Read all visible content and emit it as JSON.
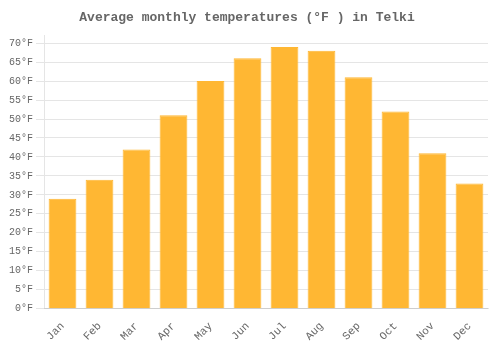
{
  "chart_data": {
    "type": "bar",
    "title": "Average monthly temperatures (°F ) in Telki",
    "categories": [
      "Jan",
      "Feb",
      "Mar",
      "Apr",
      "May",
      "Jun",
      "Jul",
      "Aug",
      "Sep",
      "Oct",
      "Nov",
      "Dec"
    ],
    "values": [
      29,
      34,
      42,
      51,
      60,
      66,
      69,
      68,
      61,
      52,
      41,
      33
    ],
    "color": "#FFB733",
    "ylim": [
      0,
      72
    ],
    "yticks": [
      {
        "value": 0,
        "label": "0°F"
      },
      {
        "value": 5,
        "label": "5°F"
      },
      {
        "value": 10,
        "label": "10°F"
      },
      {
        "value": 15,
        "label": "15°F"
      },
      {
        "value": 20,
        "label": "20°F"
      },
      {
        "value": 25,
        "label": "25°F"
      },
      {
        "value": 30,
        "label": "30°F"
      },
      {
        "value": 35,
        "label": "35°F"
      },
      {
        "value": 40,
        "label": "40°F"
      },
      {
        "value": 45,
        "label": "45°F"
      },
      {
        "value": 50,
        "label": "50°F"
      },
      {
        "value": 55,
        "label": "55°F"
      },
      {
        "value": 60,
        "label": "60°F"
      },
      {
        "value": 65,
        "label": "65°F"
      },
      {
        "value": 70,
        "label": "70°F"
      }
    ],
    "grid": true
  }
}
